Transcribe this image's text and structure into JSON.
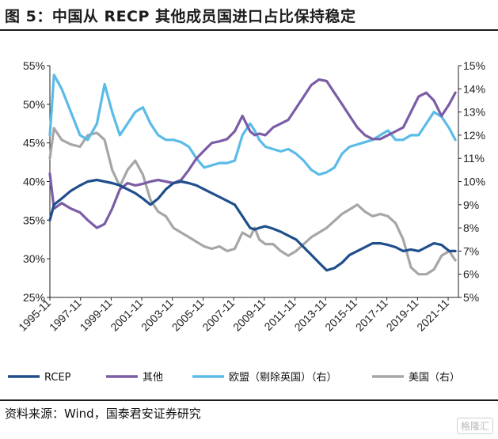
{
  "header": {
    "title": "图 5：中国从 RECP 其他成员国进口占比保持稳定"
  },
  "footer": {
    "source": "资料来源：Wind，国泰君安证券研究",
    "watermark": "格隆汇"
  },
  "chart_data": {
    "type": "line",
    "left_axis": {
      "ylim": [
        25,
        55
      ],
      "ticks": [
        "25%",
        "30%",
        "35%",
        "40%",
        "45%",
        "50%",
        "55%"
      ],
      "values": [
        25,
        30,
        35,
        40,
        45,
        50,
        55
      ]
    },
    "right_axis": {
      "ylim": [
        5,
        15
      ],
      "ticks": [
        "5%",
        "6%",
        "7%",
        "8%",
        "9%",
        "10%",
        "11%",
        "12%",
        "13%",
        "14%",
        "15%"
      ],
      "values": [
        5,
        6,
        7,
        8,
        9,
        10,
        11,
        12,
        13,
        14,
        15
      ]
    },
    "xlim": [
      1995.83,
      2022.5
    ],
    "x_ticks": [
      {
        "label": "1995-11",
        "x": 1995.83
      },
      {
        "label": "1997-11",
        "x": 1997.83
      },
      {
        "label": "1999-11",
        "x": 1999.83
      },
      {
        "label": "2001-11",
        "x": 2001.83
      },
      {
        "label": "2003-11",
        "x": 2003.83
      },
      {
        "label": "2005-11",
        "x": 2005.83
      },
      {
        "label": "2007-11",
        "x": 2007.83
      },
      {
        "label": "2009-11",
        "x": 2009.83
      },
      {
        "label": "2011-11",
        "x": 2011.83
      },
      {
        "label": "2013-11",
        "x": 2013.83
      },
      {
        "label": "2015-11",
        "x": 2015.83
      },
      {
        "label": "2017-11",
        "x": 2017.83
      },
      {
        "label": "2019-11",
        "x": 2019.83
      },
      {
        "label": "2021-11",
        "x": 2021.83
      }
    ],
    "legend_position": "bottom",
    "series": [
      {
        "name": "RCEP",
        "axis": "left",
        "color": "#1f4e8c",
        "x": [
          1995.83,
          1996.1,
          1996.6,
          1997.2,
          1997.8,
          1998.3,
          1998.9,
          1999.4,
          1999.9,
          2000.4,
          2000.9,
          2001.4,
          2001.9,
          2002.4,
          2002.9,
          2003.4,
          2003.9,
          2004.4,
          2004.9,
          2005.4,
          2005.9,
          2006.4,
          2006.9,
          2007.4,
          2007.9,
          2008.4,
          2008.9,
          2009.2,
          2009.5,
          2009.9,
          2010.4,
          2010.9,
          2011.4,
          2011.9,
          2012.4,
          2012.9,
          2013.4,
          2013.9,
          2014.4,
          2014.9,
          2015.4,
          2015.9,
          2016.4,
          2016.9,
          2017.4,
          2017.9,
          2018.4,
          2018.9,
          2019.4,
          2019.9,
          2020.4,
          2020.9,
          2021.4,
          2021.9,
          2022.3
        ],
        "y": [
          35.0,
          37.0,
          37.8,
          38.8,
          39.5,
          40.0,
          40.2,
          40.0,
          39.8,
          39.5,
          39.0,
          38.5,
          37.8,
          37.0,
          37.8,
          39.0,
          39.8,
          40.0,
          39.8,
          39.5,
          39.0,
          38.5,
          38.0,
          37.5,
          37.0,
          35.5,
          34.0,
          33.8,
          34.0,
          34.2,
          33.9,
          33.5,
          33.0,
          32.5,
          31.5,
          30.5,
          29.5,
          28.5,
          28.8,
          29.5,
          30.5,
          31.0,
          31.5,
          32.0,
          32.0,
          31.8,
          31.5,
          31.0,
          31.2,
          31.0,
          31.5,
          32.0,
          31.8,
          31.0,
          31.0
        ]
      },
      {
        "name": "其他",
        "axis": "left",
        "color": "#7b5ca6",
        "x": [
          1995.83,
          1996.1,
          1996.6,
          1997.2,
          1997.8,
          1998.3,
          1998.9,
          1999.4,
          1999.9,
          2000.4,
          2000.9,
          2001.4,
          2001.9,
          2002.4,
          2002.9,
          2003.4,
          2003.9,
          2004.4,
          2004.9,
          2005.4,
          2005.9,
          2006.4,
          2006.9,
          2007.4,
          2007.9,
          2008.4,
          2008.9,
          2009.2,
          2009.5,
          2009.9,
          2010.4,
          2010.9,
          2011.4,
          2011.9,
          2012.4,
          2012.9,
          2013.4,
          2013.9,
          2014.4,
          2014.9,
          2015.4,
          2015.9,
          2016.4,
          2016.9,
          2017.4,
          2017.9,
          2018.4,
          2018.9,
          2019.4,
          2019.9,
          2020.4,
          2020.9,
          2021.4,
          2021.9,
          2022.3
        ],
        "y": [
          41.0,
          36.5,
          37.2,
          36.5,
          36.0,
          35.0,
          34.0,
          34.5,
          36.5,
          39.0,
          39.8,
          39.5,
          39.7,
          40.0,
          40.2,
          40.0,
          39.8,
          40.2,
          41.5,
          43.0,
          44.0,
          45.0,
          45.2,
          45.5,
          46.5,
          48.5,
          46.5,
          46.0,
          46.2,
          46.0,
          47.0,
          47.5,
          48.0,
          49.5,
          51.0,
          52.5,
          53.2,
          53.0,
          51.5,
          50.0,
          48.5,
          47.0,
          46.0,
          45.5,
          45.5,
          46.0,
          46.5,
          47.0,
          49.0,
          51.0,
          51.5,
          50.5,
          48.5,
          50.0,
          51.5
        ]
      },
      {
        "name": "欧盟（剔除英国）（右）",
        "axis": "right",
        "color": "#5bbbe8",
        "x": [
          1995.83,
          1996.1,
          1996.6,
          1997.2,
          1997.8,
          1998.3,
          1998.9,
          1999.4,
          1999.9,
          2000.4,
          2000.9,
          2001.4,
          2001.9,
          2002.4,
          2002.9,
          2003.4,
          2003.9,
          2004.4,
          2004.9,
          2005.4,
          2005.9,
          2006.4,
          2006.9,
          2007.4,
          2007.9,
          2008.4,
          2008.9,
          2009.2,
          2009.5,
          2009.9,
          2010.4,
          2010.9,
          2011.4,
          2011.9,
          2012.4,
          2012.9,
          2013.4,
          2013.9,
          2014.4,
          2014.9,
          2015.4,
          2015.9,
          2016.4,
          2016.9,
          2017.4,
          2017.9,
          2018.4,
          2018.9,
          2019.4,
          2019.9,
          2020.4,
          2020.9,
          2021.4,
          2021.9,
          2022.3
        ],
        "y": [
          12.0,
          14.6,
          14.0,
          13.0,
          12.0,
          11.8,
          12.5,
          14.2,
          13.0,
          12.0,
          12.5,
          13.0,
          13.2,
          12.5,
          12.0,
          11.8,
          11.8,
          11.7,
          11.5,
          11.0,
          10.6,
          10.7,
          10.8,
          10.8,
          10.9,
          12.0,
          12.5,
          12.2,
          11.8,
          11.5,
          11.4,
          11.3,
          11.4,
          11.2,
          10.9,
          10.5,
          10.3,
          10.4,
          10.6,
          11.2,
          11.5,
          11.6,
          11.7,
          11.8,
          12.0,
          12.2,
          11.8,
          11.8,
          12.0,
          12.0,
          12.5,
          13.0,
          12.8,
          12.3,
          11.8
        ]
      },
      {
        "name": "美国（右）",
        "axis": "right",
        "color": "#a6a6a6",
        "x": [
          1995.83,
          1996.1,
          1996.6,
          1997.2,
          1997.8,
          1998.3,
          1998.9,
          1999.4,
          1999.9,
          2000.4,
          2000.9,
          2001.4,
          2001.9,
          2002.4,
          2002.9,
          2003.4,
          2003.9,
          2004.4,
          2004.9,
          2005.4,
          2005.9,
          2006.4,
          2006.9,
          2007.4,
          2007.9,
          2008.4,
          2008.9,
          2009.2,
          2009.5,
          2009.9,
          2010.4,
          2010.9,
          2011.4,
          2011.9,
          2012.4,
          2012.9,
          2013.4,
          2013.9,
          2014.4,
          2014.9,
          2015.4,
          2015.9,
          2016.4,
          2016.9,
          2017.4,
          2017.9,
          2018.4,
          2018.9,
          2019.4,
          2019.9,
          2020.4,
          2020.9,
          2021.4,
          2021.9,
          2022.3
        ],
        "y": [
          11.0,
          12.3,
          11.8,
          11.6,
          11.5,
          12.0,
          12.1,
          11.8,
          10.5,
          9.8,
          10.5,
          10.9,
          10.3,
          9.2,
          8.7,
          8.5,
          8.0,
          7.8,
          7.6,
          7.4,
          7.2,
          7.1,
          7.2,
          7.0,
          7.1,
          7.8,
          7.6,
          8.0,
          7.5,
          7.3,
          7.3,
          7.0,
          6.8,
          7.0,
          7.3,
          7.6,
          7.8,
          8.0,
          8.3,
          8.6,
          8.8,
          9.0,
          8.7,
          8.5,
          8.6,
          8.5,
          8.2,
          7.5,
          6.3,
          6.0,
          6.0,
          6.2,
          6.8,
          7.0,
          6.6
        ]
      }
    ]
  }
}
